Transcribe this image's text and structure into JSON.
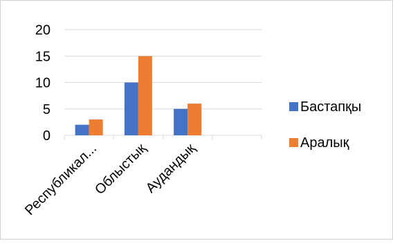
{
  "chart_data": {
    "type": "bar",
    "categories": [
      "Республикал...",
      "Облыстық",
      "Аудандық",
      ""
    ],
    "series": [
      {
        "name": "Бастапқы",
        "values": [
          2,
          10,
          5,
          null
        ],
        "color": "#4472C4"
      },
      {
        "name": "Аралық",
        "values": [
          3,
          15,
          6,
          null
        ],
        "color": "#ED7D31"
      }
    ],
    "ylim": [
      0,
      20
    ],
    "yticks": [
      0,
      5,
      10,
      15,
      20
    ],
    "grid": true,
    "legend": "right"
  }
}
